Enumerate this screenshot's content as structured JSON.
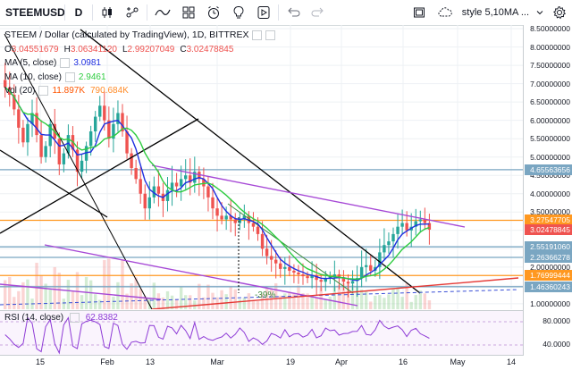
{
  "toolbar": {
    "symbol": "STEEMUSD",
    "interval": "D",
    "style_label": "style 5,10MA ..."
  },
  "legend": {
    "title": "STEEM / Dollar (calculated by TradingView), 1D, BITTREX",
    "ohlc": {
      "o_label": "O",
      "o_value": "3.04551679",
      "h_label": "H",
      "h_value": "3.06341120",
      "l_label": "L",
      "l_value": "2.99207049",
      "c_label": "C",
      "c_value": "3.02478845"
    },
    "ma5": {
      "label": "MA (5, close)",
      "value": "3.0981",
      "color": "#1f2fe0"
    },
    "ma10": {
      "label": "MA (10, close)",
      "value": "2.9461",
      "color": "#2ecc40"
    },
    "vol": {
      "label": "Vol (20)",
      "value1": "11.897K",
      "value2": "790.684K",
      "color1": "#ff5500",
      "color2": "#ff8c2a"
    },
    "rsi": {
      "label": "RSI (14, close)",
      "value": "62.8382",
      "color": "#8e3bd6"
    }
  },
  "annotation": {
    "percent_label": "-39%"
  },
  "price_axis": {
    "labels": [
      "8.50000000",
      "8.00000000",
      "7.50000000",
      "7.00000000",
      "6.50000000",
      "6.00000000",
      "5.50000000",
      "5.00000000",
      "4.50000000",
      "4.00000000",
      "3.50000000",
      "3.00000000",
      "2.50000000",
      "2.00000000",
      "1.50000000",
      "1.00000000"
    ],
    "badges": [
      {
        "text": "4.65563656",
        "color": "#7aa6c2"
      },
      {
        "text": "3.27547705",
        "color": "#ff9820"
      },
      {
        "text": "3.02478845",
        "color": "#ef5350"
      },
      {
        "text": "2.55191060",
        "color": "#7aa6c2"
      },
      {
        "text": "2.26366278",
        "color": "#7aa6c2"
      },
      {
        "text": "1.76999444",
        "color": "#ff9820"
      },
      {
        "text": "1.46360243",
        "color": "#7aa6c2"
      }
    ],
    "rsi_labels": [
      "80.0000",
      "40.0000"
    ]
  },
  "time_axis": [
    "15",
    "Feb",
    "13",
    "Mar",
    "19",
    "Apr",
    "16",
    "May",
    "14"
  ],
  "chart_data": {
    "type": "candlestick",
    "title": "STEEM / Dollar (calculated by TradingView), 1D, BITTREX",
    "series": [
      {
        "name": "MA (5, close)",
        "color": "#1f2fe0"
      },
      {
        "name": "MA (10, close)",
        "color": "#2ecc40"
      },
      {
        "name": "Vol (20)",
        "color": "#ff5500"
      },
      {
        "name": "RSI (14, close)",
        "color": "#8e3bd6"
      }
    ],
    "ylim": [
      0.85,
      8.6
    ],
    "horizontal_levels": [
      4.65563656,
      3.27547705,
      2.5519106,
      2.26366278,
      1.76999444,
      1.46360243
    ],
    "closes": [
      6.9,
      6.7,
      6.3,
      5.8,
      5.4,
      5.9,
      6.2,
      5.6,
      5.0,
      5.3,
      5.9,
      5.5,
      4.8,
      5.1,
      5.6,
      5.2,
      4.6,
      4.9,
      5.3,
      5.7,
      6.1,
      6.4,
      6.0,
      5.5,
      5.9,
      6.2,
      5.7,
      5.1,
      4.7,
      4.4,
      4.0,
      3.6,
      3.9,
      4.2,
      4.0,
      3.8,
      4.1,
      4.3,
      4.2,
      4.4,
      4.5,
      4.3,
      4.6,
      4.4,
      4.2,
      3.9,
      3.6,
      3.4,
      3.3,
      3.4,
      3.3,
      3.2,
      3.3,
      3.4,
      3.2,
      3.1,
      2.9,
      2.5,
      2.3,
      2.2,
      2.1,
      1.95,
      2.0,
      1.9,
      1.85,
      1.8,
      1.75,
      1.7,
      1.78,
      1.65,
      1.6,
      1.7,
      1.75,
      1.8,
      1.7,
      1.6,
      1.55,
      1.62,
      1.7,
      2.0,
      2.05,
      1.9,
      2.0,
      2.4,
      2.6,
      2.7,
      2.9,
      3.1,
      3.2,
      3.0,
      3.1,
      3.25,
      3.3,
      3.2,
      3.02
    ]
  }
}
